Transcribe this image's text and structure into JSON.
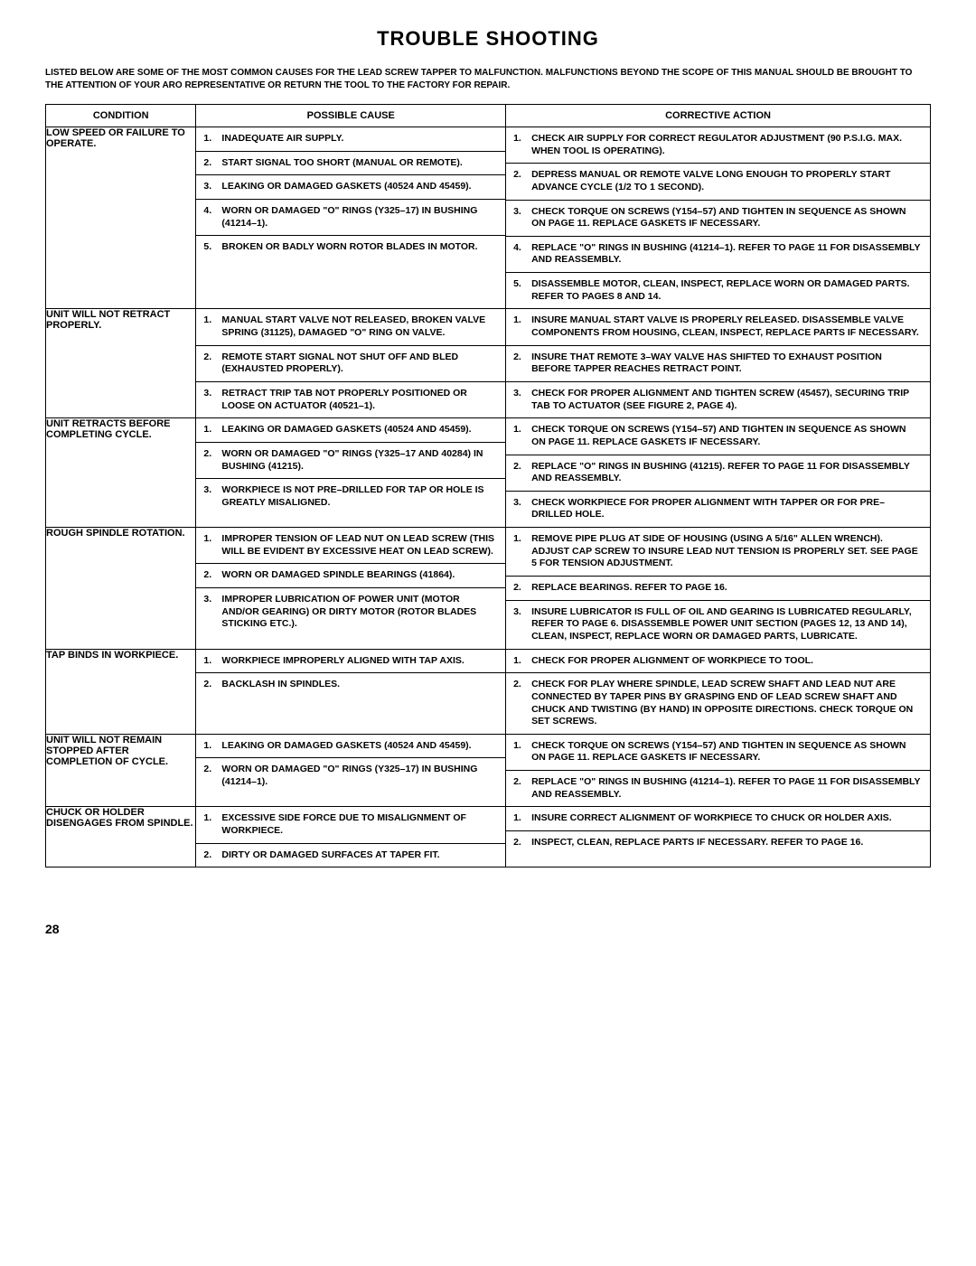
{
  "title": "TROUBLE SHOOTING",
  "intro": "LISTED BELOW ARE SOME OF THE MOST COMMON CAUSES FOR THE LEAD SCREW TAPPER TO MALFUNCTION. MALFUNCTIONS BEYOND THE SCOPE OF THIS MANUAL SHOULD BE BROUGHT TO THE ATTENTION OF YOUR ARO REPRESENTATIVE OR RETURN THE TOOL TO THE FACTORY FOR REPAIR.",
  "headers": {
    "condition": "CONDITION",
    "cause": "POSSIBLE CAUSE",
    "action": "CORRECTIVE ACTION"
  },
  "rows": [
    {
      "condition": "LOW SPEED OR FAILURE TO OPERATE.",
      "causes": [
        "INADEQUATE AIR SUPPLY.",
        "START SIGNAL TOO SHORT (MANUAL OR REMOTE).",
        "LEAKING OR DAMAGED GASKETS (40524 AND 45459).",
        "WORN OR DAMAGED \"O\" RINGS (Y325–17) IN BUSHING (41214–1).",
        "BROKEN OR BADLY WORN ROTOR BLADES IN MOTOR."
      ],
      "actions": [
        "CHECK AIR SUPPLY FOR CORRECT REGULATOR ADJUSTMENT (90 P.S.I.G. MAX. WHEN TOOL IS OPERATING).",
        "DEPRESS MANUAL OR REMOTE VALVE LONG ENOUGH TO PROPERLY START ADVANCE CYCLE (1/2 TO 1 SECOND).",
        "CHECK TORQUE ON SCREWS (Y154–57) AND TIGHTEN IN SEQUENCE AS SHOWN ON PAGE 11. REPLACE GASKETS IF NECESSARY.",
        "REPLACE \"O\" RINGS IN BUSHING (41214–1). REFER TO PAGE 11 FOR DISASSEMBLY AND REASSEMBLY.",
        "DISASSEMBLE MOTOR, CLEAN, INSPECT, REPLACE WORN OR DAMAGED PARTS. REFER TO PAGES 8 AND 14."
      ]
    },
    {
      "condition": "UNIT WILL NOT RETRACT PROPERLY.",
      "causes": [
        "MANUAL START VALVE NOT RELEASED, BROKEN VALVE SPRING (31125), DAMAGED \"O\" RING ON VALVE.",
        "REMOTE START SIGNAL NOT SHUT OFF AND BLED (EXHAUSTED PROPERLY).",
        "RETRACT TRIP TAB NOT PROPERLY POSITIONED OR LOOSE ON ACTUATOR (40521–1)."
      ],
      "actions": [
        "INSURE MANUAL START VALVE IS PROPERLY RELEASED. DISASSEMBLE VALVE COMPONENTS FROM HOUSING, CLEAN, INSPECT, REPLACE PARTS IF NECESSARY.",
        "INSURE THAT REMOTE 3–WAY VALVE HAS SHIFTED TO EXHAUST POSITION BEFORE TAPPER REACHES RETRACT POINT.",
        "CHECK FOR PROPER ALIGNMENT AND TIGHTEN SCREW (45457), SECURING TRIP TAB TO ACTUATOR (SEE FIGURE 2, PAGE 4)."
      ]
    },
    {
      "condition": "UNIT RETRACTS BEFORE COMPLETING CYCLE.",
      "causes": [
        "LEAKING OR DAMAGED GASKETS (40524 AND 45459).",
        "WORN OR DAMAGED \"O\" RINGS (Y325–17 AND 40284) IN BUSHING (41215).",
        "WORKPIECE IS NOT PRE–DRILLED FOR TAP OR HOLE IS GREATLY MISALIGNED."
      ],
      "actions": [
        "CHECK TORQUE ON SCREWS (Y154–57) AND TIGHTEN IN SEQUENCE AS SHOWN ON PAGE 11. REPLACE GASKETS IF NECESSARY.",
        "REPLACE \"O\" RINGS IN BUSHING (41215). REFER TO PAGE 11 FOR DISASSEMBLY AND REASSEMBLY.",
        "CHECK WORKPIECE FOR PROPER ALIGNMENT WITH TAPPER OR FOR PRE–DRILLED HOLE."
      ]
    },
    {
      "condition": "ROUGH SPINDLE ROTATION.",
      "causes": [
        "IMPROPER TENSION OF LEAD NUT ON LEAD SCREW (THIS WILL BE EVIDENT BY EXCESSIVE HEAT ON LEAD SCREW).",
        "WORN OR DAMAGED SPINDLE BEARINGS (41864).",
        "IMPROPER LUBRICATION OF POWER UNIT (MOTOR AND/OR GEARING) OR DIRTY MOTOR (ROTOR BLADES STICKING ETC.)."
      ],
      "actions": [
        "REMOVE PIPE PLUG AT SIDE OF HOUSING (USING A 5/16\" ALLEN WRENCH). ADJUST CAP SCREW TO INSURE LEAD NUT TENSION IS PROPERLY SET. SEE PAGE 5 FOR TENSION ADJUSTMENT.",
        "REPLACE BEARINGS. REFER TO PAGE 16.",
        "INSURE LUBRICATOR IS FULL OF OIL AND GEARING IS LUBRICATED REGULARLY, REFER TO PAGE 6. DISASSEMBLE POWER UNIT SECTION (PAGES 12, 13 AND 14), CLEAN, INSPECT, REPLACE WORN OR DAMAGED PARTS, LUBRICATE."
      ]
    },
    {
      "condition": "TAP BINDS IN WORKPIECE.",
      "causes": [
        "WORKPIECE IMPROPERLY ALIGNED WITH TAP AXIS.",
        "BACKLASH IN SPINDLES."
      ],
      "actions": [
        "CHECK FOR PROPER ALIGNMENT OF WORKPIECE TO TOOL.",
        "CHECK FOR PLAY WHERE SPINDLE, LEAD SCREW SHAFT AND LEAD NUT ARE CONNECTED BY TAPER PINS BY GRASPING END OF LEAD SCREW SHAFT AND CHUCK AND TWISTING (BY HAND) IN OPPOSITE DIRECTIONS. CHECK TORQUE ON SET SCREWS."
      ]
    },
    {
      "condition": "UNIT WILL NOT REMAIN STOPPED AFTER COMPLETION OF CYCLE.",
      "causes": [
        "LEAKING OR DAMAGED GASKETS (40524 AND 45459).",
        "WORN OR DAMAGED \"O\" RINGS (Y325–17) IN BUSHING (41214–1)."
      ],
      "actions": [
        "CHECK TORQUE ON SCREWS (Y154–57) AND TIGHTEN IN SEQUENCE AS SHOWN ON PAGE 11. REPLACE GASKETS IF NECESSARY.",
        "REPLACE \"O\" RINGS IN BUSHING (41214–1). REFER TO PAGE 11 FOR DISASSEMBLY AND REASSEMBLY."
      ]
    },
    {
      "condition": "CHUCK OR HOLDER DISENGAGES FROM SPINDLE.",
      "causes": [
        "EXCESSIVE SIDE FORCE DUE TO MISALIGNMENT OF WORKPIECE.",
        "DIRTY OR DAMAGED SURFACES AT TAPER FIT."
      ],
      "actions": [
        "INSURE CORRECT ALIGNMENT OF WORKPIECE TO CHUCK OR HOLDER AXIS.",
        "INSPECT, CLEAN, REPLACE PARTS IF NECESSARY. REFER TO PAGE 16."
      ]
    }
  ],
  "pageNumber": "28"
}
